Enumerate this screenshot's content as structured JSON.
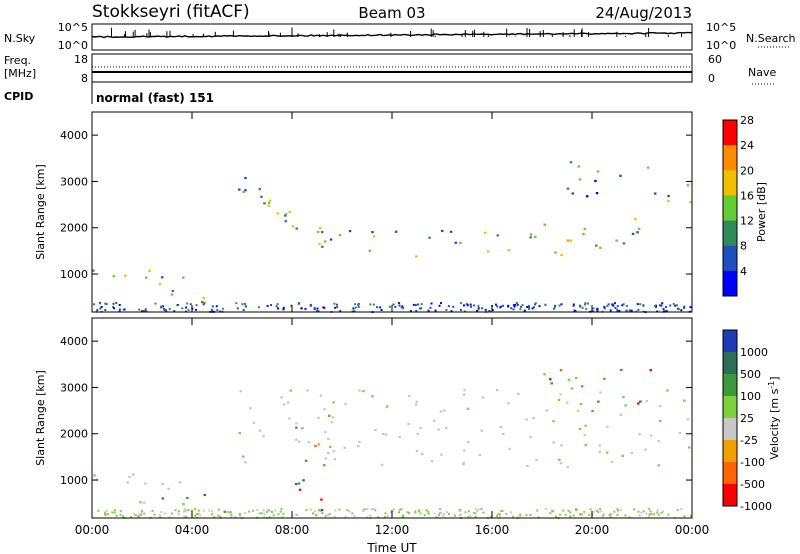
{
  "header": {
    "station": "Stokkseyri (fitACF)",
    "beam": "Beam 03",
    "date": "24/Aug/2013"
  },
  "strips": {
    "nsky_label": "N.Sky",
    "nsky_ticks": [
      "10^5",
      "10^0"
    ],
    "nsearch_label": "N.Search",
    "nsearch_ticks": [
      "10^5",
      "10^0"
    ],
    "freq_label_1": "Freq.",
    "freq_label_2": "[MHz]",
    "freq_ticks": [
      "18",
      "8"
    ],
    "nave_label": "Nave",
    "nave_ticks": [
      "60",
      "0"
    ],
    "cpid_label": "CPID",
    "cpid_text": "normal (fast) 151"
  },
  "chart_data": [
    {
      "type": "heatmap",
      "panel": "power",
      "ylabel": "Slant Range [km]",
      "yticks": [
        "1000",
        "2000",
        "3000",
        "4000"
      ],
      "ylim": [
        180,
        4500
      ],
      "xlim_hours": [
        0,
        24
      ],
      "colorbar": {
        "label": "Power [dB]",
        "ticks": [
          "4",
          "8",
          "12",
          "16",
          "20",
          "24",
          "28"
        ],
        "colors": [
          "#0000ff",
          "#1f4fbf",
          "#2e8b57",
          "#66cc33",
          "#f0c000",
          "#ff8c00",
          "#ff0000"
        ]
      },
      "echo_regions": [
        {
          "t0": 0.0,
          "t1": 3.9,
          "r0": 500,
          "r1": 1150,
          "level": "mid"
        },
        {
          "t0": 3.9,
          "t1": 5.3,
          "r0": 350,
          "r1": 800,
          "level": "mid"
        },
        {
          "t0": 5.8,
          "t1": 9.5,
          "r0": 1400,
          "r1": 3000,
          "level": "mid",
          "trend": "descending"
        },
        {
          "t0": 9.5,
          "t1": 16.5,
          "r0": 1400,
          "r1": 2000,
          "level": "mid"
        },
        {
          "t0": 16.5,
          "t1": 21.5,
          "r0": 1300,
          "r1": 2100,
          "level": "high"
        },
        {
          "t0": 21.5,
          "t1": 24.0,
          "r0": 2000,
          "r1": 2800,
          "level": "mid",
          "trend": "ascending"
        },
        {
          "t0": 18.5,
          "t1": 22.5,
          "r0": 2700,
          "r1": 3500,
          "level": "low"
        }
      ]
    },
    {
      "type": "heatmap",
      "panel": "velocity",
      "ylabel": "Slant Range [km]",
      "yticks": [
        "1000",
        "2000",
        "3000",
        "4000"
      ],
      "ylim": [
        180,
        4500
      ],
      "xlim_hours": [
        0,
        24
      ],
      "colorbar": {
        "label": "Velocity [m s^-1]",
        "ticks": [
          "1000",
          "500",
          "100",
          "25",
          "-25",
          "-100",
          "-500",
          "-1000"
        ],
        "colors": [
          "#1e3cb4",
          "#2d6e5a",
          "#3c9a3c",
          "#7dd23c",
          "#c8c8c8",
          "#f0a000",
          "#ff6400",
          "#ff0000"
        ]
      },
      "echo_regions": [
        {
          "t0": 0.0,
          "t1": 3.9,
          "r0": 500,
          "r1": 1150,
          "level": "ground"
        },
        {
          "t0": 1.5,
          "t1": 5.5,
          "r0": 250,
          "r1": 800,
          "level": "positive"
        },
        {
          "t0": 5.8,
          "t1": 24.0,
          "r0": 1300,
          "r1": 3000,
          "level": "ground"
        },
        {
          "t0": 8.0,
          "t1": 9.5,
          "r0": 300,
          "r1": 2500,
          "level": "mixed"
        },
        {
          "t0": 18.0,
          "t1": 22.5,
          "r0": 2500,
          "r1": 3500,
          "level": "mixed"
        }
      ],
      "xlabel": "Time UT",
      "xticks": [
        "00:00",
        "04:00",
        "08:00",
        "12:00",
        "16:00",
        "20:00",
        "00:00"
      ]
    }
  ]
}
